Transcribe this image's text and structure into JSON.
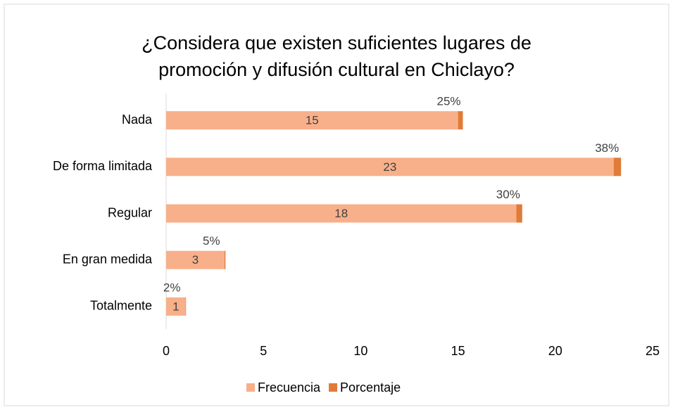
{
  "chart_data": {
    "type": "stacked-bar-horizontal",
    "title": "¿Considera que existen suficientes lugares de promoción y difusión cultural en Chiclayo?",
    "categories": [
      "Nada",
      "De forma limitada",
      "Regular",
      "En gran medida",
      "Totalmente"
    ],
    "series": [
      {
        "name": "Frecuencia",
        "color": "#f8b08a",
        "values": [
          15,
          23,
          18,
          3,
          1
        ]
      },
      {
        "name": "Porcentaje",
        "color": "#e07b39",
        "values": [
          0.25,
          0.38,
          0.3,
          0.05,
          0.02
        ],
        "value_labels": [
          "25%",
          "38%",
          "30%",
          "5%",
          "2%"
        ]
      }
    ],
    "xlim": [
      0,
      25
    ],
    "xticks": [
      0,
      5,
      10,
      15,
      20,
      25
    ],
    "grid": false,
    "legend": "bottom"
  }
}
